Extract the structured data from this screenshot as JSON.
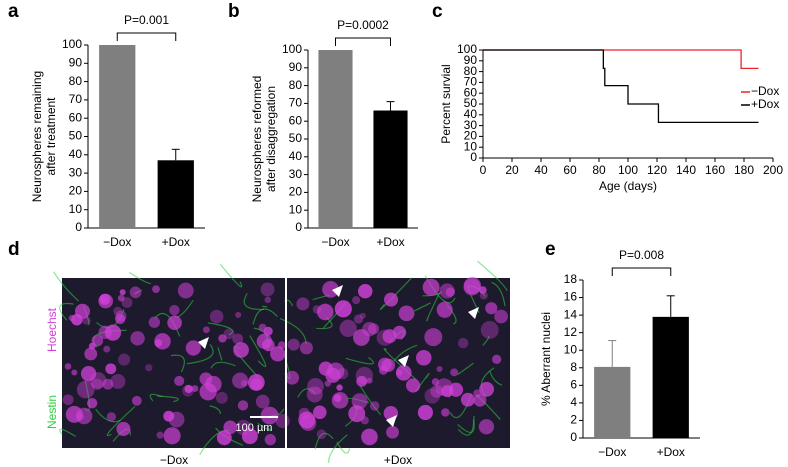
{
  "chart_data": [
    {
      "type": "bar",
      "label": "a",
      "ylabel": [
        "Neurospheres remaining",
        "after treatment"
      ],
      "categories": [
        "−Dox",
        "+Dox"
      ],
      "values": [
        100,
        37
      ],
      "errors": [
        0,
        6
      ],
      "colors": [
        "#7f7f7f",
        "#000000"
      ],
      "ylim": [
        0,
        100
      ],
      "yticks": [
        0,
        10,
        20,
        30,
        40,
        50,
        60,
        70,
        80,
        90,
        100
      ],
      "annotation": "P=0.001"
    },
    {
      "type": "bar",
      "label": "b",
      "ylabel": [
        "Neurospheres reformed",
        "after disaggregation"
      ],
      "categories": [
        "−Dox",
        "+Dox"
      ],
      "values": [
        100,
        66
      ],
      "errors": [
        0,
        5
      ],
      "colors": [
        "#7f7f7f",
        "#000000"
      ],
      "ylim": [
        0,
        100
      ],
      "yticks": [
        0,
        10,
        20,
        30,
        40,
        50,
        60,
        70,
        80,
        90,
        100
      ],
      "annotation": "P=0.0002"
    },
    {
      "type": "line",
      "label": "c",
      "xlabel": "Age (days)",
      "ylabel": [
        "Percent survial"
      ],
      "series": [
        {
          "name": "−Dox",
          "color": "#e8252b",
          "x": [
            0,
            178,
            178,
            190
          ],
          "values": [
            100,
            100,
            83,
            83
          ]
        },
        {
          "name": "+Dox",
          "color": "#000000",
          "x": [
            0,
            83,
            83,
            84,
            84,
            100,
            100,
            121,
            121,
            190
          ],
          "values": [
            100,
            100,
            83,
            83,
            67,
            67,
            50,
            50,
            33,
            33
          ]
        }
      ],
      "xlim": [
        0,
        200
      ],
      "xticks": [
        0,
        20,
        40,
        60,
        80,
        100,
        120,
        140,
        160,
        180,
        200
      ],
      "ylim": [
        0,
        100
      ],
      "yticks": [
        0,
        10,
        20,
        30,
        40,
        50,
        60,
        70,
        80,
        90,
        100
      ],
      "legend": "right"
    },
    {
      "type": "image",
      "label": "d",
      "captions": [
        "−Dox",
        "+Dox"
      ],
      "stains": [
        {
          "name": "Hoechst",
          "color": "#d040d8"
        },
        {
          "name": "Nestin",
          "color": "#30d040"
        }
      ],
      "scale_bar": "100 µm"
    },
    {
      "type": "bar",
      "label": "e",
      "ylabel": [
        "% Aberrant nuclei"
      ],
      "categories": [
        "−Dox",
        "+Dox"
      ],
      "values": [
        8.1,
        13.8
      ],
      "errors": [
        3.0,
        2.4
      ],
      "colors": [
        "#7f7f7f",
        "#000000"
      ],
      "ylim": [
        0,
        18
      ],
      "yticks": [
        0,
        2,
        4,
        6,
        8,
        10,
        12,
        14,
        16,
        18
      ],
      "annotation": "P=0.008"
    }
  ]
}
